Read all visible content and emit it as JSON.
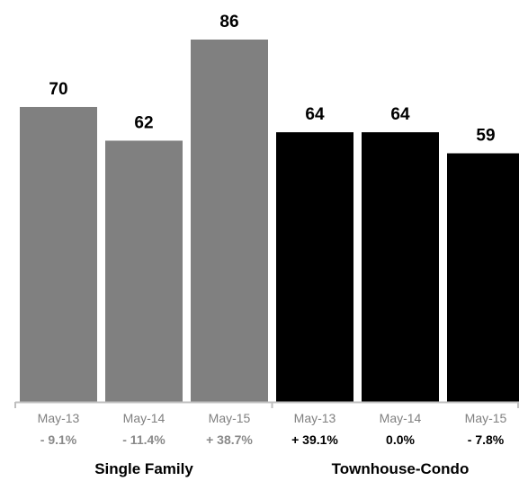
{
  "chart_data": {
    "type": "bar",
    "ylim": [
      0,
      86
    ],
    "groups": [
      {
        "name": "Single Family",
        "color": "#808080",
        "change_color": "#8a8a8a",
        "bars": [
          {
            "category": "May-13",
            "value": 70,
            "change": "- 9.1%"
          },
          {
            "category": "May-14",
            "value": 62,
            "change": "- 11.4%"
          },
          {
            "category": "May-15",
            "value": 86,
            "change": "+ 38.7%"
          }
        ]
      },
      {
        "name": "Townhouse-Condo",
        "color": "#000000",
        "change_color": "#000000",
        "bars": [
          {
            "category": "May-13",
            "value": 64,
            "change": "+ 39.1%"
          },
          {
            "category": "May-14",
            "value": 64,
            "change": "0.0%"
          },
          {
            "category": "May-15",
            "value": 59,
            "change": "- 7.8%"
          }
        ]
      }
    ],
    "axis_color": "#bfbfbf",
    "tick_label_color": "#808080",
    "grid": false,
    "legend": "none"
  }
}
